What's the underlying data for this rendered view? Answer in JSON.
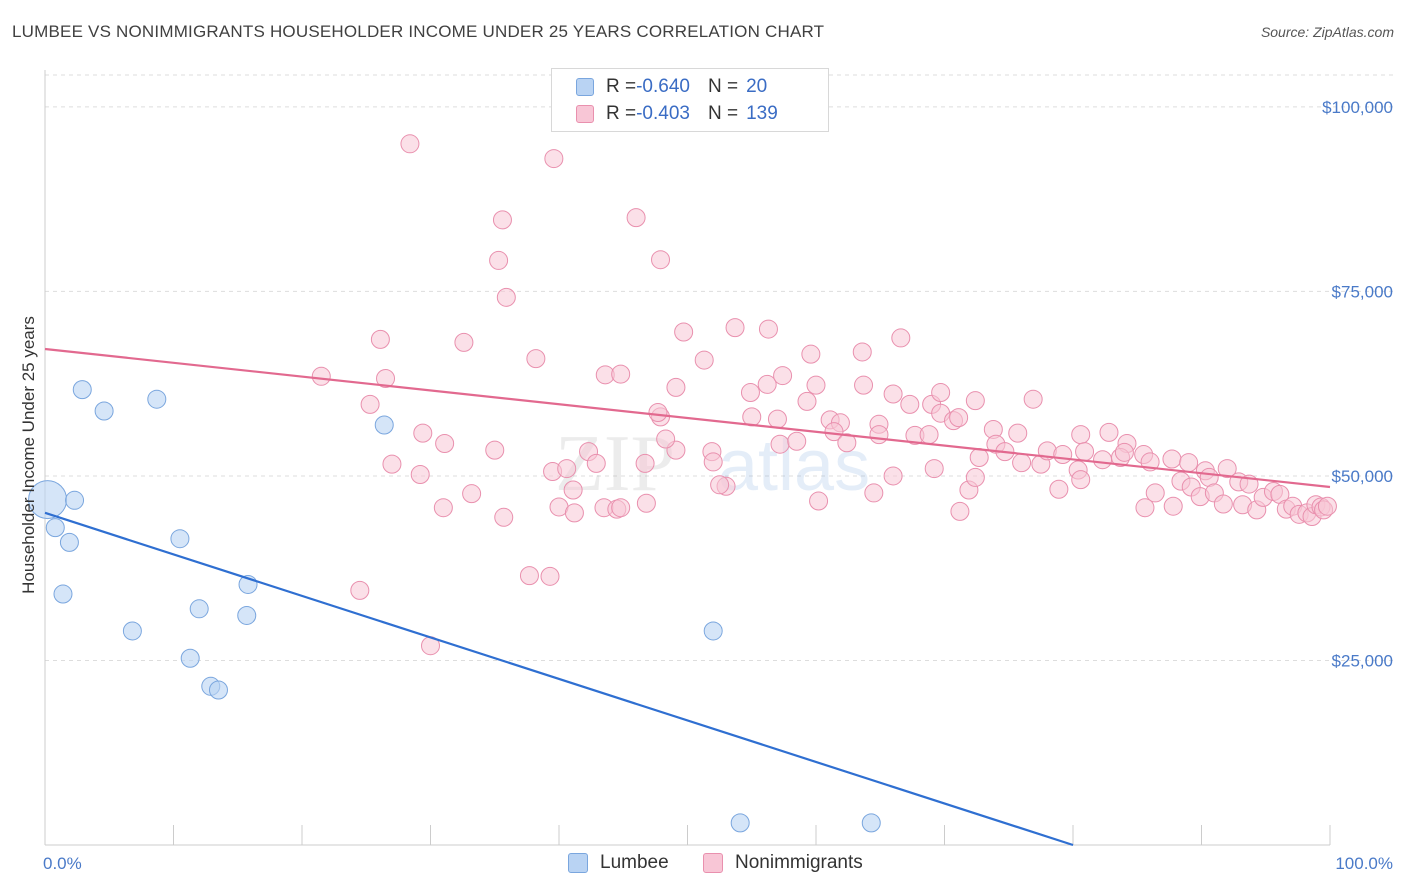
{
  "title": "LUMBEE VS NONIMMIGRANTS HOUSEHOLDER INCOME UNDER 25 YEARS CORRELATION CHART",
  "source": "Source: ZipAtlas.com",
  "watermark": {
    "zip": "ZIP",
    "atlas": "atlas"
  },
  "legend": {
    "rows": [
      {
        "r_label": "R = ",
        "r_value": "-0.640",
        "n_label": "N = ",
        "n_value": "20"
      },
      {
        "r_label": "R = ",
        "r_value": "-0.403",
        "n_label": "N = ",
        "n_value": "139"
      }
    ]
  },
  "bottom_legend": {
    "lumbee": "Lumbee",
    "nonimmigrants": "Nonimmigrants"
  },
  "colors": {
    "lumbee_fill": "#b9d3f3",
    "lumbee_stroke": "#7aa6de",
    "lumbee_line": "#2f6fd1",
    "non_fill": "#f8c6d6",
    "non_stroke": "#e990ae",
    "non_line": "#e2698f",
    "grid": "#dddddd",
    "axis_label": "#4a7ac8"
  },
  "chart_data": {
    "type": "scatter",
    "title": "LUMBEE VS NONIMMIGRANTS HOUSEHOLDER INCOME UNDER 25 YEARS CORRELATION CHART",
    "xlabel": "",
    "ylabel": "Householder Income Under 25 years",
    "xlim": [
      0,
      100
    ],
    "ylim": [
      0,
      105000
    ],
    "x_tick_labels": [
      "0.0%",
      "100.0%"
    ],
    "y_ticks": [
      25000,
      50000,
      75000,
      100000
    ],
    "y_tick_labels": [
      "$25,000",
      "$50,000",
      "$75,000",
      "$100,000"
    ],
    "grid": "horizontal dashed",
    "series": [
      {
        "name": "Lumbee",
        "points": [
          [
            0.2,
            46800
          ],
          [
            2.3,
            46700
          ],
          [
            0.8,
            43000
          ],
          [
            1.9,
            41000
          ],
          [
            1.4,
            34000
          ],
          [
            2.9,
            61700
          ],
          [
            4.6,
            58800
          ],
          [
            8.7,
            60400
          ],
          [
            10.5,
            41500
          ],
          [
            6.8,
            29000
          ],
          [
            12.0,
            32000
          ],
          [
            11.3,
            25300
          ],
          [
            12.9,
            21500
          ],
          [
            13.5,
            21000
          ],
          [
            15.8,
            35300
          ],
          [
            15.7,
            31100
          ],
          [
            26.4,
            56900
          ],
          [
            52.0,
            29000
          ],
          [
            54.1,
            3000
          ],
          [
            64.3,
            3000
          ]
        ],
        "trend": {
          "x": [
            0,
            80
          ],
          "y": [
            45000,
            0
          ]
        }
      },
      {
        "name": "Nonimmigrants",
        "points": [
          [
            28.4,
            95000
          ],
          [
            39.6,
            93000
          ],
          [
            35.6,
            84700
          ],
          [
            46.0,
            85000
          ],
          [
            35.3,
            79200
          ],
          [
            47.9,
            79300
          ],
          [
            35.9,
            74200
          ],
          [
            32.6,
            68100
          ],
          [
            26.1,
            68500
          ],
          [
            53.7,
            70100
          ],
          [
            49.7,
            69500
          ],
          [
            56.3,
            69900
          ],
          [
            38.2,
            65900
          ],
          [
            51.3,
            65700
          ],
          [
            59.6,
            66500
          ],
          [
            63.6,
            66800
          ],
          [
            66.6,
            68700
          ],
          [
            21.5,
            63500
          ],
          [
            26.5,
            63200
          ],
          [
            43.6,
            63700
          ],
          [
            44.8,
            63800
          ],
          [
            54.9,
            61300
          ],
          [
            56.2,
            62400
          ],
          [
            57.4,
            63600
          ],
          [
            60.0,
            62300
          ],
          [
            63.7,
            62300
          ],
          [
            66.0,
            61100
          ],
          [
            25.3,
            59700
          ],
          [
            49.1,
            62000
          ],
          [
            59.3,
            60100
          ],
          [
            67.3,
            59700
          ],
          [
            69.0,
            59700
          ],
          [
            69.7,
            61300
          ],
          [
            72.4,
            60200
          ],
          [
            76.9,
            60400
          ],
          [
            47.9,
            58000
          ],
          [
            47.7,
            58600
          ],
          [
            55.0,
            58000
          ],
          [
            57.0,
            57700
          ],
          [
            61.1,
            57600
          ],
          [
            61.9,
            57200
          ],
          [
            64.9,
            57000
          ],
          [
            69.7,
            58500
          ],
          [
            70.7,
            57500
          ],
          [
            71.1,
            57900
          ],
          [
            29.4,
            55800
          ],
          [
            31.1,
            54400
          ],
          [
            41.1,
            48100
          ],
          [
            42.3,
            53300
          ],
          [
            49.1,
            53500
          ],
          [
            48.3,
            55000
          ],
          [
            51.9,
            53300
          ],
          [
            53.0,
            48600
          ],
          [
            57.2,
            54300
          ],
          [
            61.4,
            56000
          ],
          [
            62.4,
            54500
          ],
          [
            64.9,
            55600
          ],
          [
            67.7,
            55500
          ],
          [
            68.8,
            55600
          ],
          [
            73.8,
            56300
          ],
          [
            74.0,
            54300
          ],
          [
            75.7,
            55800
          ],
          [
            80.6,
            55600
          ],
          [
            82.8,
            55900
          ],
          [
            84.2,
            54400
          ],
          [
            27.0,
            51600
          ],
          [
            29.2,
            50200
          ],
          [
            35.0,
            53500
          ],
          [
            39.5,
            50600
          ],
          [
            40.6,
            51000
          ],
          [
            42.9,
            51700
          ],
          [
            46.7,
            51700
          ],
          [
            52.0,
            51900
          ],
          [
            60.2,
            46600
          ],
          [
            69.2,
            51000
          ],
          [
            72.7,
            52500
          ],
          [
            74.7,
            53300
          ],
          [
            76.0,
            51800
          ],
          [
            77.5,
            51600
          ],
          [
            78.0,
            53400
          ],
          [
            79.2,
            52900
          ],
          [
            80.4,
            50800
          ],
          [
            80.9,
            53300
          ],
          [
            82.3,
            52200
          ],
          [
            83.7,
            52500
          ],
          [
            84.0,
            53200
          ],
          [
            85.5,
            52900
          ],
          [
            86.0,
            51900
          ],
          [
            87.7,
            52300
          ],
          [
            89.0,
            51800
          ],
          [
            90.3,
            50700
          ],
          [
            90.6,
            49800
          ],
          [
            92.0,
            51000
          ],
          [
            92.9,
            49200
          ],
          [
            93.7,
            48900
          ],
          [
            31.0,
            45700
          ],
          [
            33.2,
            47600
          ],
          [
            35.7,
            44400
          ],
          [
            37.7,
            36500
          ],
          [
            39.3,
            36400
          ],
          [
            40.0,
            45800
          ],
          [
            41.2,
            45000
          ],
          [
            43.5,
            45700
          ],
          [
            44.5,
            45500
          ],
          [
            44.8,
            45700
          ],
          [
            46.8,
            46300
          ],
          [
            52.5,
            48800
          ],
          [
            64.5,
            47700
          ],
          [
            71.2,
            45200
          ],
          [
            71.9,
            48100
          ],
          [
            72.4,
            49800
          ],
          [
            78.9,
            48200
          ],
          [
            80.6,
            49500
          ],
          [
            86.4,
            47700
          ],
          [
            85.6,
            45700
          ],
          [
            87.8,
            45900
          ],
          [
            88.4,
            49300
          ],
          [
            89.2,
            48500
          ],
          [
            89.9,
            47200
          ],
          [
            91.0,
            47700
          ],
          [
            91.7,
            46200
          ],
          [
            93.2,
            46100
          ],
          [
            94.3,
            45400
          ],
          [
            94.8,
            47100
          ],
          [
            95.6,
            47900
          ],
          [
            96.1,
            47500
          ],
          [
            96.6,
            45500
          ],
          [
            97.1,
            45900
          ],
          [
            97.6,
            44800
          ],
          [
            98.2,
            45000
          ],
          [
            98.6,
            44500
          ],
          [
            98.9,
            46100
          ],
          [
            99.3,
            45800
          ],
          [
            99.5,
            45400
          ],
          [
            99.8,
            45900
          ],
          [
            24.5,
            34500
          ],
          [
            30.0,
            27000
          ],
          [
            66.0,
            50000
          ],
          [
            58.5,
            54700
          ]
        ],
        "trend": {
          "x": [
            0,
            100
          ],
          "y": [
            67200,
            48500
          ]
        }
      }
    ]
  }
}
